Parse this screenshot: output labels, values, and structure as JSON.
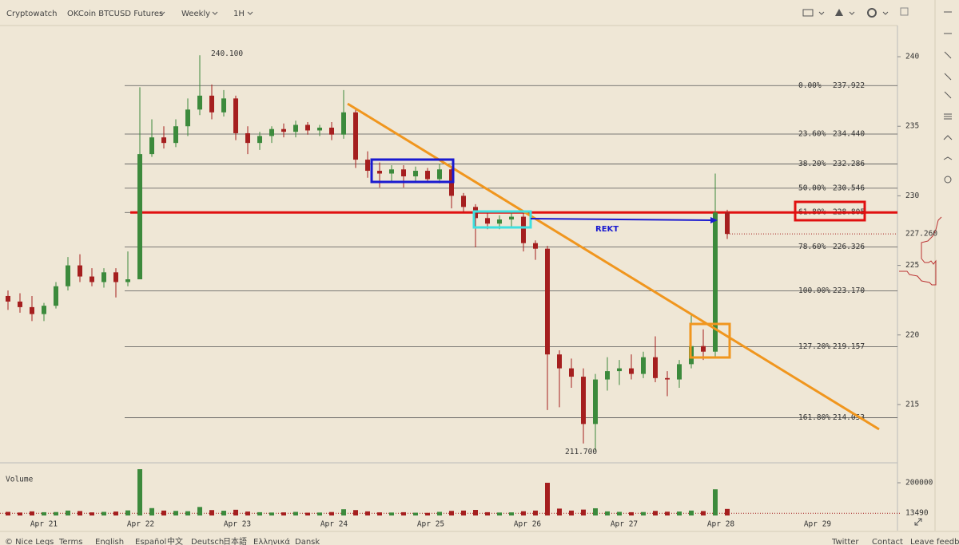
{
  "toolbar": {
    "brand": "Cryptowatch",
    "market": "OKCoin BTCUSD Futures",
    "period": "Weekly",
    "interval": "1H"
  },
  "chart_data": {
    "type": "candlestick",
    "open": [
      222.8,
      222.4,
      222.0,
      221.5,
      222.1,
      223.5,
      225.0,
      224.2,
      223.8,
      224.5,
      223.8,
      224.0,
      233.0,
      234.2,
      233.8,
      235.0,
      236.2,
      237.2,
      236.0,
      237.0,
      234.5,
      233.8,
      234.3,
      234.8,
      234.6,
      235.1,
      234.7,
      234.9,
      234.4,
      236.0,
      232.6,
      231.8,
      231.6,
      231.9,
      231.4,
      231.8,
      231.2,
      231.9,
      230.0,
      229.2,
      228.4,
      228.0,
      228.3,
      228.5,
      226.6,
      226.2,
      218.6,
      217.6,
      217.0,
      213.6,
      216.8,
      217.4,
      217.6,
      217.2,
      218.4,
      216.9,
      216.8,
      217.9,
      219.2,
      218.8,
      228.8
    ],
    "high": [
      223.2,
      223.0,
      222.8,
      222.3,
      223.8,
      225.6,
      225.8,
      224.8,
      224.8,
      224.8,
      226.0,
      237.8,
      235.5,
      235.0,
      235.5,
      237.0,
      240.1,
      238.0,
      237.6,
      237.2,
      235.0,
      234.6,
      235.0,
      235.2,
      235.4,
      235.3,
      235.1,
      235.3,
      237.6,
      236.2,
      233.2,
      232.4,
      232.2,
      232.2,
      232.1,
      232.0,
      232.3,
      232.0,
      230.2,
      229.4,
      228.8,
      228.6,
      228.8,
      228.8,
      226.8,
      226.4,
      218.9,
      218.3,
      217.6,
      217.2,
      218.4,
      218.2,
      218.6,
      218.8,
      219.9,
      217.4,
      218.2,
      221.4,
      220.4,
      231.6,
      229.0
    ],
    "low": [
      221.8,
      221.6,
      221.0,
      221.0,
      221.9,
      223.2,
      223.8,
      223.5,
      223.4,
      222.7,
      223.5,
      224.0,
      232.8,
      233.4,
      233.5,
      234.3,
      235.8,
      235.5,
      235.7,
      234.0,
      233.0,
      233.3,
      233.8,
      234.2,
      234.2,
      234.4,
      234.3,
      234.0,
      234.1,
      232.0,
      231.3,
      230.6,
      231.0,
      230.6,
      231.0,
      231.0,
      230.9,
      229.1,
      228.8,
      226.3,
      227.6,
      227.6,
      227.8,
      226.0,
      225.4,
      214.6,
      214.8,
      216.2,
      212.2,
      211.7,
      216.0,
      216.4,
      216.8,
      216.9,
      216.6,
      215.6,
      216.2,
      217.6,
      218.2,
      218.4,
      226.9
    ],
    "close": [
      222.4,
      222.0,
      221.5,
      222.1,
      223.5,
      225.0,
      224.2,
      223.8,
      224.5,
      223.8,
      224.0,
      233.0,
      234.2,
      233.8,
      235.0,
      236.2,
      237.2,
      236.0,
      237.0,
      234.5,
      233.8,
      234.3,
      234.8,
      234.6,
      235.1,
      234.7,
      234.9,
      234.4,
      236.0,
      232.6,
      231.8,
      231.6,
      231.9,
      231.4,
      231.8,
      231.2,
      231.9,
      230.0,
      229.2,
      228.4,
      228.0,
      228.3,
      228.5,
      226.6,
      226.2,
      218.6,
      217.6,
      217.0,
      213.6,
      216.8,
      217.4,
      217.6,
      217.2,
      218.4,
      216.9,
      216.8,
      217.9,
      219.2,
      218.8,
      228.8,
      227.26
    ],
    "colors": {
      "up": "#3c8a3c",
      "down": "#a51f1f"
    },
    "ylim": [
      210.81,
      242.24
    ],
    "yticks": [
      215,
      220,
      225,
      230,
      235,
      240
    ],
    "xticks": [
      "Apr 21",
      "Apr 22",
      "Apr 23",
      "Apr 24",
      "Apr 25",
      "Apr 26",
      "Apr 27",
      "Apr 28",
      "Apr 29"
    ],
    "fib_levels": [
      {
        "level": "0.00%",
        "price": 237.922
      },
      {
        "level": "23.60%",
        "price": {
          "value": 234.44,
          "label": "234.440"
        }
      },
      {
        "level": "38.20%",
        "price": 232.286
      },
      {
        "level": "50.00%",
        "price": 230.546
      },
      {
        "level": "61.80%",
        "price": 228.805
      },
      {
        "level": "78.60%",
        "price": 226.326
      },
      {
        "level": "100.00%",
        "price": {
          "value": 223.17,
          "label": "223.170"
        }
      },
      {
        "level": "127.20%",
        "price": 219.157
      },
      {
        "level": "161.80%",
        "price": 214.053
      }
    ],
    "annotations": {
      "high": {
        "value": 240.1,
        "label": "240.100"
      },
      "low": {
        "value": 211.7,
        "label": "211.700"
      },
      "note": "REKT"
    },
    "last_price": {
      "value": 227.26,
      "label": "227.260"
    },
    "volume": {
      "title": "Volume",
      "values": [
        22000,
        18000,
        25000,
        20000,
        21000,
        30000,
        27000,
        19000,
        22000,
        24000,
        31000,
        283000,
        45000,
        30000,
        28000,
        26000,
        52000,
        33000,
        29000,
        35000,
        24000,
        20000,
        18000,
        19000,
        22000,
        17000,
        18000,
        21000,
        38000,
        33000,
        25000,
        19000,
        18000,
        20000,
        17000,
        16000,
        22000,
        28000,
        30000,
        34000,
        20000,
        18000,
        19000,
        26000,
        30000,
        200000,
        42000,
        30000,
        36000,
        44000,
        25000,
        22000,
        20000,
        21000,
        28000,
        23000,
        24000,
        30000,
        27000,
        160000,
        40000
      ],
      "ylim": [
        0,
        283000
      ],
      "yticks": [
        200000,
        13490
      ]
    }
  },
  "footer": {
    "left": [
      "© Nice Legs",
      "Terms",
      "English",
      "Español",
      "中文",
      "Deutsch",
      "日本語",
      "Ελληνικά",
      "Dansk"
    ],
    "right": [
      "Twitter",
      "Contact",
      "Leave feedback"
    ]
  }
}
